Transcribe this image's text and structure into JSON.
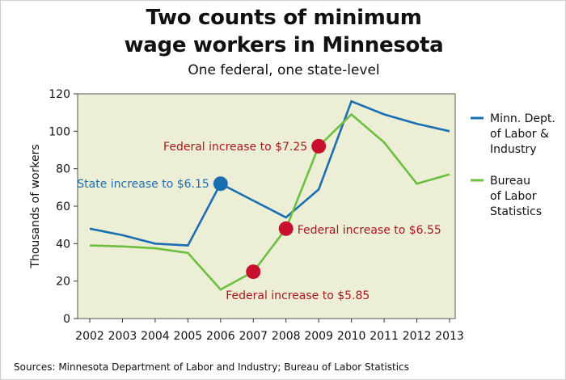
{
  "title_line1": "Two counts of minimum",
  "title_line2": "wage workers in Minnesota",
  "subtitle": "One federal, one state-level",
  "source": "Sources: Minnesota Department of Labor and Industry; Bureau of Labor Statistics",
  "colors": {
    "plot_bg": "#ecefd6",
    "blue": "#1a6fb3",
    "green": "#6cbf3f",
    "red": "#c8102e",
    "annotation_red": "#a8171c",
    "annotation_blue": "#1a6fb3"
  },
  "chart_data": {
    "type": "line",
    "title": "Two counts of minimum wage workers in Minnesota",
    "subtitle": "One federal, one state-level",
    "xlabel": "",
    "ylabel": "Thousands of workers",
    "x": [
      2002,
      2003,
      2004,
      2005,
      2006,
      2007,
      2008,
      2009,
      2010,
      2011,
      2012,
      2013
    ],
    "ylim": [
      0,
      120
    ],
    "yticks": [
      0,
      20,
      40,
      60,
      80,
      100,
      120
    ],
    "grid": false,
    "legend_position": "right",
    "series": [
      {
        "name": "Minn. Dept. of Labor & Industry",
        "legend_lines": [
          "Minn. Dept.",
          "of Labor &",
          "Industry"
        ],
        "color": "#1a6fb3",
        "values": [
          48,
          44.5,
          40,
          39,
          72,
          63,
          54,
          69,
          116,
          109,
          104,
          100
        ]
      },
      {
        "name": "Bureau of Labor Statistics",
        "legend_lines": [
          "Bureau",
          "of Labor",
          "Statistics"
        ],
        "color": "#6cbf3f",
        "values": [
          39,
          38.5,
          37.5,
          35,
          15.5,
          25,
          48,
          92,
          109,
          94,
          72,
          77
        ]
      }
    ],
    "annotations": [
      {
        "text": "State increase to $6.15",
        "x": 2006,
        "y": 72,
        "marker_color": "#1a6fb3",
        "text_color": "#1a6fb3",
        "anchor": "end"
      },
      {
        "text": "Federal increase to $5.85",
        "x": 2007,
        "y": 25,
        "marker_color": "#c8102e",
        "text_color": "#a8171c",
        "anchor": "below"
      },
      {
        "text": "Federal increase to $6.55",
        "x": 2008,
        "y": 48,
        "marker_color": "#c8102e",
        "text_color": "#a8171c",
        "anchor": "start"
      },
      {
        "text": "Federal increase to $7.25",
        "x": 2009,
        "y": 92,
        "marker_color": "#c8102e",
        "text_color": "#a8171c",
        "anchor": "end"
      }
    ]
  }
}
